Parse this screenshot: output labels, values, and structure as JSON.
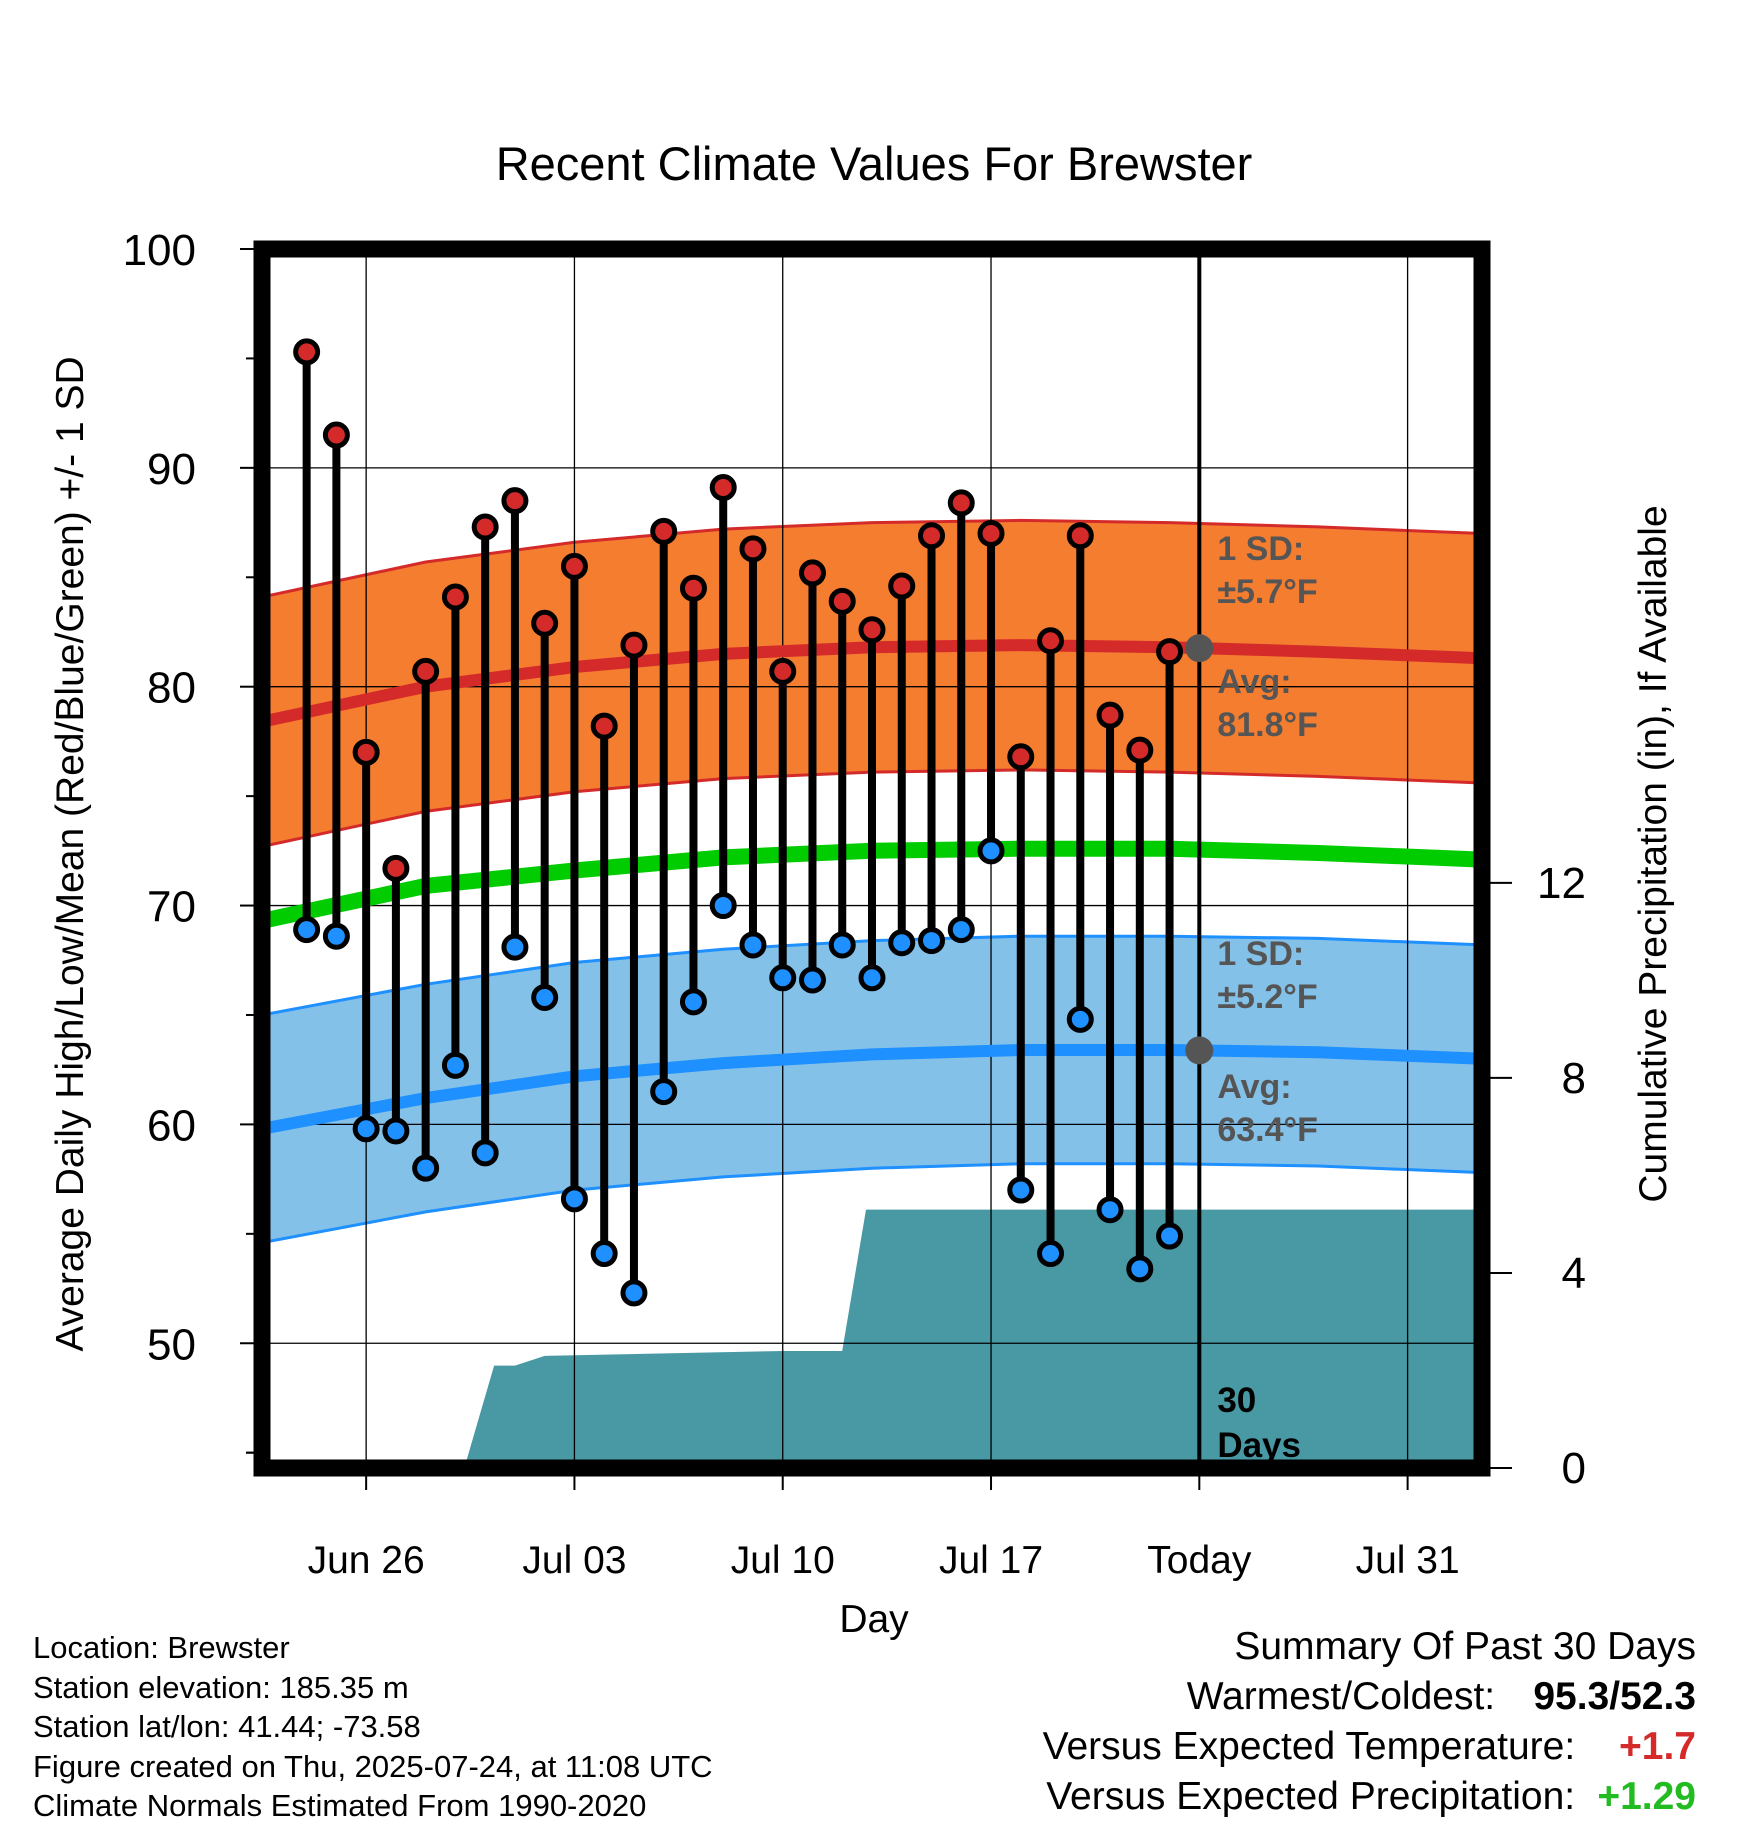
{
  "chart_data": {
    "type": "line",
    "title": "Recent Climate Values For Brewster",
    "xlabel": "Day",
    "ylabel": "Average Daily High/Low/Mean (Red/Blue/Green) +/- 1 SD",
    "y2label": "Cumulative Precipitation (in), If Available",
    "ylim": [
      44.3,
      100
    ],
    "y2lim": [
      0,
      25
    ],
    "y_ticks": [
      50,
      60,
      70,
      80,
      90,
      100
    ],
    "y2_ticks": [
      0,
      4,
      8,
      12
    ],
    "x_tick_labels": [
      "Jun 26",
      "Jul 03",
      "Jul 10",
      "Jul 17",
      "Today",
      "Jul 31"
    ],
    "x_tick_days": [
      3,
      10,
      17,
      24,
      31,
      38
    ],
    "xlim": [
      -0.5,
      40.5
    ],
    "grid": true,
    "daily_high": [
      95.3,
      91.5,
      77.0,
      71.7,
      80.7,
      84.1,
      87.3,
      88.5,
      82.9,
      85.5,
      78.2,
      81.9,
      87.1,
      84.5,
      89.1,
      86.3,
      80.7,
      85.2,
      83.9,
      82.6,
      84.6,
      86.9,
      88.4,
      87.0,
      76.8,
      82.1,
      86.9,
      78.7,
      77.1,
      81.6
    ],
    "daily_low": [
      68.9,
      68.6,
      59.8,
      59.7,
      58.0,
      62.7,
      58.7,
      68.1,
      65.8,
      56.6,
      54.1,
      52.3,
      61.5,
      65.6,
      70.0,
      68.2,
      66.7,
      66.6,
      68.2,
      66.7,
      68.3,
      68.4,
      68.9,
      72.5,
      57.0,
      54.1,
      64.8,
      56.1,
      53.4,
      54.9
    ],
    "normal_high": {
      "x": [
        -0.5,
        5,
        10,
        15,
        20,
        25,
        30,
        35,
        40.5
      ],
      "mean": [
        78.4,
        80.0,
        80.9,
        81.5,
        81.8,
        81.9,
        81.8,
        81.6,
        81.3
      ],
      "sd": 5.7
    },
    "normal_low": {
      "x": [
        -0.5,
        5,
        10,
        15,
        20,
        25,
        30,
        35,
        40.5
      ],
      "mean": [
        59.8,
        61.2,
        62.2,
        62.8,
        63.2,
        63.4,
        63.4,
        63.3,
        63.0
      ],
      "sd": 5.2
    },
    "normal_mean": {
      "x": [
        -0.5,
        5,
        10,
        15,
        20,
        25,
        30,
        35,
        40.5
      ],
      "values": [
        69.3,
        70.9,
        71.6,
        72.2,
        72.5,
        72.6,
        72.6,
        72.4,
        72.1
      ]
    },
    "precipitation": {
      "x": [
        -0.5,
        6.3,
        7.3,
        8.0,
        9.0,
        17.0,
        19.0,
        19.8,
        20.8,
        40.5
      ],
      "values": [
        0,
        0,
        2.1,
        2.1,
        2.3,
        2.4,
        2.4,
        5.3,
        5.3,
        5.3
      ]
    },
    "today_day": 31,
    "annotations": {
      "high_sd_line1": "1 SD:",
      "high_sd_line2": "±5.7°F",
      "high_avg_line1": "Avg:",
      "high_avg_line2": "81.8°F",
      "low_sd_line1": "1 SD:",
      "low_sd_line2": "±5.2°F",
      "low_avg_line1": "Avg:",
      "low_avg_line2": "63.4°F",
      "days_line1": "30",
      "days_line2": "Days"
    },
    "colors": {
      "high_band": "#f47d30",
      "high_line": "#d42a2a",
      "low_band": "#84c1e8",
      "low_line": "#1e90ff",
      "mean_line": "#00cc00",
      "precip": "#4899a3",
      "high_marker": "#d42a2a",
      "low_marker": "#1e90ff",
      "annotation_text": "#555555"
    }
  },
  "footer": {
    "location": "Location: Brewster",
    "elevation": "Station elevation: 185.35 m",
    "latlon": "Station lat/lon: 41.44; -73.58",
    "created": "Figure created on Thu, 2025-07-24, at 11:08 UTC",
    "normals": "Climate Normals Estimated From 1990-2020"
  },
  "summary": {
    "title": "Summary Of Past 30 Days",
    "warmest_coldest_label": "Warmest/Coldest:",
    "warmest": "95.3",
    "slash": "/",
    "coldest": "52.3",
    "temp_label": "Versus Expected Temperature:",
    "temp_value": "+1.7",
    "temp_color": "#d42a2a",
    "precip_label": "Versus Expected Precipitation:",
    "precip_value": "+1.29",
    "precip_color": "#22bb22"
  }
}
